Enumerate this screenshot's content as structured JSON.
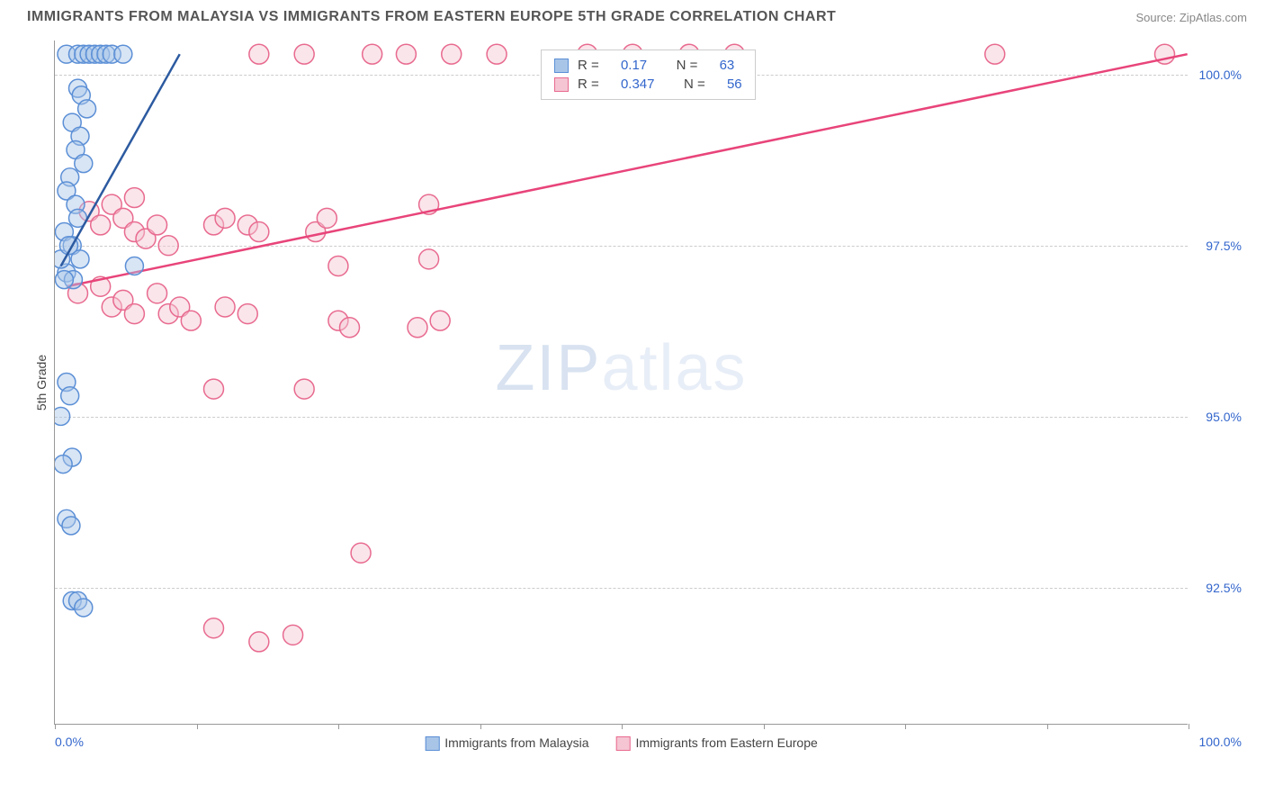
{
  "header": {
    "title": "IMMIGRANTS FROM MALAYSIA VS IMMIGRANTS FROM EASTERN EUROPE 5TH GRADE CORRELATION CHART",
    "source": "Source: ZipAtlas.com"
  },
  "watermark": {
    "zip": "ZIP",
    "atlas": "atlas"
  },
  "axes": {
    "ylabel": "5th Grade",
    "xlim": [
      0,
      100
    ],
    "ylim": [
      90.5,
      100.5
    ],
    "yticks": [
      {
        "value": 92.5,
        "label": "92.5%"
      },
      {
        "value": 95.0,
        "label": "95.0%"
      },
      {
        "value": 97.5,
        "label": "97.5%"
      },
      {
        "value": 100.0,
        "label": "100.0%"
      }
    ],
    "xticks": [
      0,
      12.5,
      25,
      37.5,
      50,
      62.5,
      75,
      87.5,
      100
    ],
    "xlabel_min": "0.0%",
    "xlabel_max": "100.0%",
    "grid_color": "#cccccc",
    "axis_color": "#999999",
    "tick_label_color": "#3366cc"
  },
  "series": {
    "malaysia": {
      "label": "Immigrants from Malaysia",
      "color_fill": "#a8c5e8",
      "color_stroke": "#5b8fd6",
      "fill_opacity": 0.45,
      "marker_radius": 10,
      "R": 0.17,
      "N": 63,
      "trend": {
        "x1": 0.5,
        "y1": 97.2,
        "x2": 11,
        "y2": 100.3,
        "color": "#2c5aa0",
        "width": 2.5
      },
      "points": [
        [
          1,
          100.3
        ],
        [
          2,
          100.3
        ],
        [
          2.5,
          100.3
        ],
        [
          3,
          100.3
        ],
        [
          3.5,
          100.3
        ],
        [
          4,
          100.3
        ],
        [
          4.5,
          100.3
        ],
        [
          5,
          100.3
        ],
        [
          6,
          100.3
        ],
        [
          2,
          99.8
        ],
        [
          2.3,
          99.7
        ],
        [
          2.8,
          99.5
        ],
        [
          1.5,
          99.3
        ],
        [
          2.2,
          99.1
        ],
        [
          1.8,
          98.9
        ],
        [
          2.5,
          98.7
        ],
        [
          1.3,
          98.5
        ],
        [
          1,
          98.3
        ],
        [
          1.8,
          98.1
        ],
        [
          2,
          97.9
        ],
        [
          0.8,
          97.7
        ],
        [
          1.5,
          97.5
        ],
        [
          2.2,
          97.3
        ],
        [
          1,
          97.1
        ],
        [
          1.6,
          97.0
        ],
        [
          0.5,
          97.3
        ],
        [
          0.8,
          97.0
        ],
        [
          1.2,
          97.5
        ],
        [
          7,
          97.2
        ],
        [
          1,
          95.5
        ],
        [
          1.3,
          95.3
        ],
        [
          0.5,
          95.0
        ],
        [
          1.5,
          94.4
        ],
        [
          0.7,
          94.3
        ],
        [
          1,
          93.5
        ],
        [
          1.4,
          93.4
        ],
        [
          1.5,
          92.3
        ],
        [
          2,
          92.3
        ],
        [
          2.5,
          92.2
        ]
      ]
    },
    "eastern_europe": {
      "label": "Immigrants from Eastern Europe",
      "color_fill": "#f5c5d3",
      "color_stroke": "#e86a8f",
      "fill_opacity": 0.45,
      "marker_radius": 11,
      "R": 0.347,
      "N": 56,
      "trend": {
        "x1": 1,
        "y1": 96.9,
        "x2": 100,
        "y2": 100.3,
        "color": "#e8447a",
        "width": 2.5
      },
      "points": [
        [
          18,
          100.3
        ],
        [
          22,
          100.3
        ],
        [
          28,
          100.3
        ],
        [
          31,
          100.3
        ],
        [
          35,
          100.3
        ],
        [
          39,
          100.3
        ],
        [
          47,
          100.3
        ],
        [
          51,
          100.3
        ],
        [
          56,
          100.3
        ],
        [
          60,
          100.3
        ],
        [
          83,
          100.3
        ],
        [
          98,
          100.3
        ],
        [
          3,
          98.0
        ],
        [
          4,
          97.8
        ],
        [
          5,
          98.1
        ],
        [
          6,
          97.9
        ],
        [
          7,
          97.7
        ],
        [
          7,
          98.2
        ],
        [
          8,
          97.6
        ],
        [
          9,
          97.8
        ],
        [
          10,
          97.5
        ],
        [
          14,
          97.8
        ],
        [
          15,
          97.9
        ],
        [
          17,
          97.8
        ],
        [
          18,
          97.7
        ],
        [
          23,
          97.7
        ],
        [
          24,
          97.9
        ],
        [
          33,
          98.1
        ],
        [
          25,
          97.2
        ],
        [
          33,
          97.3
        ],
        [
          2,
          96.8
        ],
        [
          4,
          96.9
        ],
        [
          5,
          96.6
        ],
        [
          6,
          96.7
        ],
        [
          7,
          96.5
        ],
        [
          9,
          96.8
        ],
        [
          10,
          96.5
        ],
        [
          11,
          96.6
        ],
        [
          12,
          96.4
        ],
        [
          15,
          96.6
        ],
        [
          17,
          96.5
        ],
        [
          25,
          96.4
        ],
        [
          26,
          96.3
        ],
        [
          32,
          96.3
        ],
        [
          34,
          96.4
        ],
        [
          14,
          95.4
        ],
        [
          22,
          95.4
        ],
        [
          27,
          93.0
        ],
        [
          14,
          91.9
        ],
        [
          18,
          91.7
        ],
        [
          21,
          91.8
        ]
      ]
    }
  },
  "stats_legend": {
    "R_label": "R  =",
    "N_label": "N  ="
  }
}
